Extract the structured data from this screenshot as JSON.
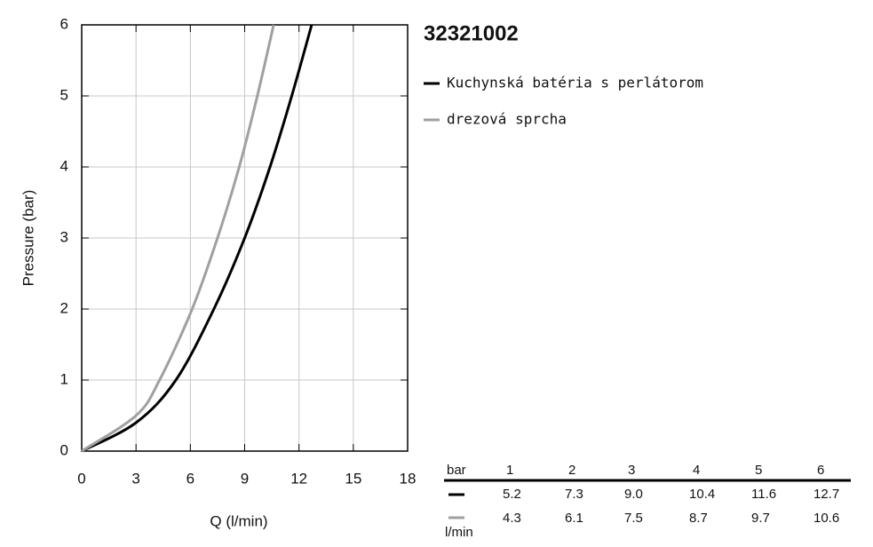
{
  "chart_data": {
    "type": "line",
    "title": "32321002",
    "xlabel": "Q (l/min)",
    "ylabel": "Pressure (bar)",
    "xlim": [
      0,
      18
    ],
    "xticks": [
      0,
      3,
      6,
      9,
      12,
      15,
      18
    ],
    "ylim": [
      0,
      6
    ],
    "yticks": [
      0,
      1,
      2,
      3,
      4,
      5,
      6
    ],
    "grid": true,
    "series": [
      {
        "name": "Kuchynská batéria s perlátorom",
        "color": "#000000",
        "x": [
          0,
          3,
          5.2,
          7.3,
          9.0,
          10.4,
          11.6,
          12.7
        ],
        "y": [
          0,
          0.4,
          1,
          2,
          3,
          4,
          5,
          6
        ]
      },
      {
        "name": "drezová sprcha",
        "color": "#a0a0a0",
        "x": [
          0,
          3,
          4.3,
          6.1,
          7.5,
          8.7,
          9.7,
          10.6
        ],
        "y": [
          0,
          0.5,
          1,
          2,
          3,
          4,
          5,
          6
        ]
      }
    ]
  },
  "table": {
    "header": [
      "bar",
      "1",
      "2",
      "3",
      "4",
      "5",
      "6"
    ],
    "rows": [
      [
        "5.2",
        "7.3",
        "9.0",
        "10.4",
        "11.6",
        "12.7"
      ],
      [
        "4.3",
        "6.1",
        "7.5",
        "8.7",
        "9.7",
        "10.6"
      ]
    ],
    "unit": "l/min"
  }
}
